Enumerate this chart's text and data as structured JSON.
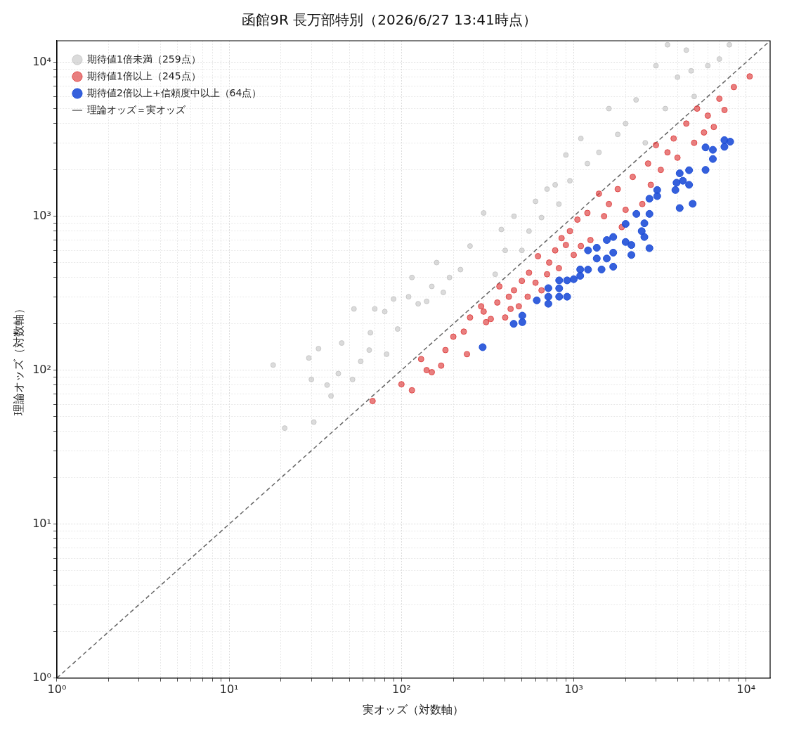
{
  "chart_data": {
    "type": "scatter",
    "title": "函館9R 長万部特別（2026/6/27 13:41時点）",
    "xlabel": "実オッズ（対数軸）",
    "ylabel": "理論オッズ（対数軸）",
    "log": "xy",
    "grid": true,
    "legend": "top left",
    "marker": "circle",
    "xlim": [
      1,
      13800
    ],
    "ylim": [
      1,
      13800
    ],
    "xticks": [
      {
        "value": 1,
        "label": "10⁰"
      },
      {
        "value": 2,
        "label": null
      },
      {
        "value": 3,
        "label": null
      },
      {
        "value": 4,
        "label": null
      },
      {
        "value": 5,
        "label": null
      },
      {
        "value": 6,
        "label": null
      },
      {
        "value": 7,
        "label": null
      },
      {
        "value": 8,
        "label": null
      },
      {
        "value": 9,
        "label": null
      },
      {
        "value": 10,
        "label": "10¹"
      },
      {
        "value": 20,
        "label": null
      },
      {
        "value": 30,
        "label": null
      },
      {
        "value": 40,
        "label": null
      },
      {
        "value": 50,
        "label": null
      },
      {
        "value": 60,
        "label": null
      },
      {
        "value": 70,
        "label": null
      },
      {
        "value": 80,
        "label": null
      },
      {
        "value": 90,
        "label": null
      },
      {
        "value": 100,
        "label": "10²"
      },
      {
        "value": 200,
        "label": null
      },
      {
        "value": 300,
        "label": null
      },
      {
        "value": 400,
        "label": null
      },
      {
        "value": 500,
        "label": null
      },
      {
        "value": 600,
        "label": null
      },
      {
        "value": 700,
        "label": null
      },
      {
        "value": 800,
        "label": null
      },
      {
        "value": 900,
        "label": null
      },
      {
        "value": 1000,
        "label": "10³"
      },
      {
        "value": 2000,
        "label": null
      },
      {
        "value": 3000,
        "label": null
      },
      {
        "value": 4000,
        "label": null
      },
      {
        "value": 5000,
        "label": null
      },
      {
        "value": 6000,
        "label": null
      },
      {
        "value": 7000,
        "label": null
      },
      {
        "value": 8000,
        "label": null
      },
      {
        "value": 9000,
        "label": null
      },
      {
        "value": 10000,
        "label": "10⁴"
      }
    ],
    "yticks": [
      {
        "value": 1,
        "label": "10⁰"
      },
      {
        "value": 2,
        "label": null
      },
      {
        "value": 3,
        "label": null
      },
      {
        "value": 4,
        "label": null
      },
      {
        "value": 5,
        "label": null
      },
      {
        "value": 6,
        "label": null
      },
      {
        "value": 7,
        "label": null
      },
      {
        "value": 8,
        "label": null
      },
      {
        "value": 9,
        "label": null
      },
      {
        "value": 10,
        "label": "10¹"
      },
      {
        "value": 20,
        "label": null
      },
      {
        "value": 30,
        "label": null
      },
      {
        "value": 40,
        "label": null
      },
      {
        "value": 50,
        "label": null
      },
      {
        "value": 60,
        "label": null
      },
      {
        "value": 70,
        "label": null
      },
      {
        "value": 80,
        "label": null
      },
      {
        "value": 90,
        "label": null
      },
      {
        "value": 100,
        "label": "10²"
      },
      {
        "value": 200,
        "label": null
      },
      {
        "value": 300,
        "label": null
      },
      {
        "value": 400,
        "label": null
      },
      {
        "value": 500,
        "label": null
      },
      {
        "value": 600,
        "label": null
      },
      {
        "value": 700,
        "label": null
      },
      {
        "value": 800,
        "label": null
      },
      {
        "value": 900,
        "label": null
      },
      {
        "value": 1000,
        "label": "10³"
      },
      {
        "value": 2000,
        "label": null
      },
      {
        "value": 3000,
        "label": null
      },
      {
        "value": 4000,
        "label": null
      },
      {
        "value": 5000,
        "label": null
      },
      {
        "value": 6000,
        "label": null
      },
      {
        "value": 7000,
        "label": null
      },
      {
        "value": 8000,
        "label": null
      },
      {
        "value": 9000,
        "label": null
      },
      {
        "value": 10000,
        "label": "10⁴"
      }
    ],
    "series": [
      {
        "name": "期待値1倍未満（259点）",
        "color": "#bdbdbd",
        "x": [
          18,
          21,
          29,
          30,
          31,
          33,
          37,
          39,
          43,
          45,
          52,
          53,
          58,
          65,
          66,
          70,
          80,
          82,
          90,
          95,
          110,
          115,
          125,
          140,
          150,
          160,
          175,
          190,
          220,
          250,
          300,
          350,
          380,
          400,
          450,
          500,
          550,
          600,
          650,
          700,
          780,
          820,
          900,
          950,
          1100,
          1200,
          1400,
          1600,
          1800,
          2000,
          2300,
          2600,
          3000,
          3400,
          4000,
          4500,
          5000,
          6000,
          7000,
          8000,
          4800,
          3500
        ],
        "values": [
          108,
          42,
          120,
          87,
          46,
          138,
          80,
          68,
          95,
          150,
          87,
          250,
          114,
          135,
          175,
          250,
          240,
          127,
          290,
          185,
          300,
          400,
          270,
          280,
          350,
          500,
          320,
          400,
          450,
          640,
          1050,
          420,
          820,
          600,
          1000,
          600,
          800,
          1250,
          980,
          1500,
          1600,
          1200,
          2500,
          1700,
          3200,
          2200,
          2600,
          5000,
          3400,
          4000,
          5700,
          3000,
          9500,
          5000,
          8000,
          12000,
          6000,
          9500,
          10500,
          13000,
          8800,
          13000
        ]
      },
      {
        "name": "期待値1倍以上（245点）",
        "color": "#dd3a3a",
        "x": [
          68,
          100,
          115,
          130,
          140,
          150,
          170,
          180,
          200,
          230,
          240,
          250,
          290,
          300,
          310,
          330,
          360,
          370,
          400,
          420,
          430,
          450,
          480,
          500,
          540,
          550,
          600,
          620,
          650,
          700,
          720,
          780,
          820,
          850,
          900,
          950,
          1000,
          1050,
          1100,
          1200,
          1250,
          1400,
          1500,
          1600,
          1800,
          1900,
          2000,
          2200,
          2500,
          2700,
          2800,
          3000,
          3200,
          3500,
          3800,
          4000,
          4500,
          5000,
          5200,
          5700,
          6000,
          6500,
          7000,
          7500,
          8500,
          10500
        ],
        "values": [
          63,
          81,
          74,
          118,
          100,
          97,
          107,
          135,
          165,
          178,
          127,
          220,
          260,
          240,
          205,
          215,
          275,
          350,
          220,
          300,
          250,
          330,
          260,
          380,
          300,
          430,
          370,
          550,
          330,
          420,
          500,
          600,
          460,
          720,
          650,
          800,
          560,
          950,
          640,
          1050,
          700,
          1400,
          1000,
          1200,
          1500,
          850,
          1100,
          1800,
          1200,
          2200,
          1600,
          2900,
          2000,
          2600,
          3200,
          2400,
          4000,
          3000,
          5000,
          3500,
          4500,
          3800,
          5800,
          4900,
          6900,
          8100
        ]
      },
      {
        "name": "期待値2倍以上+信頼度中以上（64点）",
        "color": "#1f4fd8",
        "x": [
          296,
          448,
          503,
          503,
          610,
          712,
          712,
          712,
          823,
          823,
          823,
          915,
          915,
          1000,
          1090,
          1090,
          1210,
          1210,
          1360,
          1360,
          1450,
          1555,
          1555,
          1695,
          1695,
          1695,
          2000,
          2000,
          2160,
          2160,
          2310,
          2570,
          2480,
          2570,
          2750,
          2750,
          2750,
          3050,
          3050,
          3890,
          4120,
          3950,
          4120,
          4300,
          4670,
          4670,
          4900,
          5820,
          5820,
          6420,
          6420,
          7490,
          7490,
          8090
        ],
        "values": [
          141,
          200,
          226,
          205,
          284,
          341,
          300,
          270,
          383,
          340,
          300,
          383,
          300,
          390,
          451,
          410,
          600,
          450,
          624,
          531,
          451,
          531,
          700,
          733,
          580,
          470,
          680,
          891,
          560,
          650,
          1035,
          733,
          800,
          900,
          1035,
          620,
          1300,
          1480,
          1350,
          1480,
          1130,
          1650,
          1900,
          1700,
          1990,
          1600,
          1205,
          2000,
          2800,
          2355,
          2700,
          2825,
          3120,
          3050
        ]
      },
      {
        "name": "理論オッズ＝実オッズ",
        "type": "line",
        "color": "#666666",
        "line_style": "dashed",
        "marker": "none",
        "x": [
          1,
          13800
        ],
        "values": [
          1,
          13800
        ]
      }
    ]
  }
}
